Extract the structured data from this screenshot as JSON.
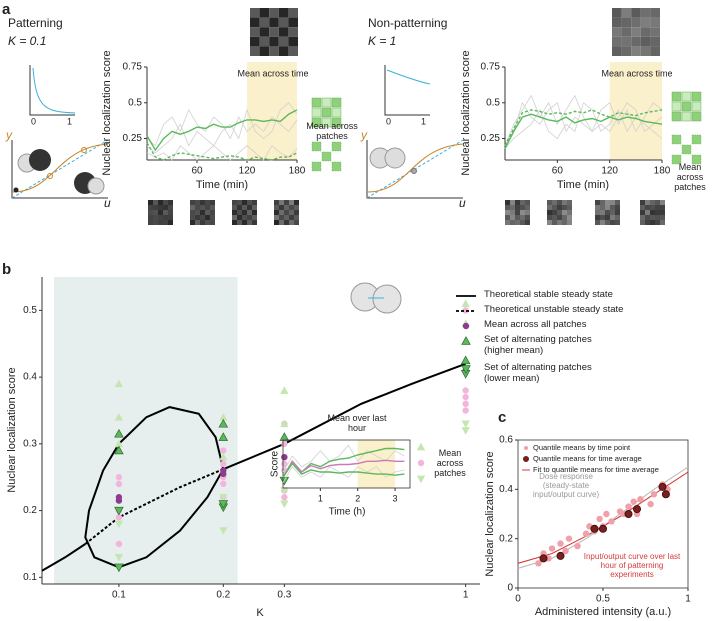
{
  "chart_data": [
    {
      "type": "line",
      "panel": "a",
      "title": "Patterning",
      "subtitle": "K = 0.1",
      "y_label": "Nuclear localization score",
      "x_label": "Time (min)",
      "xlim": [
        0,
        180
      ],
      "ylim": [
        0.1,
        0.75
      ],
      "xticks": [
        60,
        120,
        180
      ],
      "yticks": [
        0.25,
        0.5,
        0.75
      ],
      "highlight": [
        120,
        180
      ],
      "highlight_color": "#fbf0cc",
      "x": [
        0,
        10,
        20,
        30,
        40,
        50,
        60,
        70,
        80,
        90,
        100,
        110,
        120,
        130,
        140,
        150,
        160,
        170,
        180
      ],
      "series": [
        {
          "color": "#d0d0d0",
          "values": [
            0.25,
            0.2,
            0.35,
            0.4,
            0.3,
            0.45,
            0.35,
            0.3,
            0.4,
            0.35,
            0.25,
            0.4,
            0.3,
            0.35,
            0.3,
            0.4,
            0.35,
            0.3,
            0.38
          ]
        },
        {
          "color": "#d0d0d0",
          "values": [
            0.2,
            0.15,
            0.2,
            0.25,
            0.35,
            0.2,
            0.3,
            0.25,
            0.2,
            0.3,
            0.35,
            0.25,
            0.45,
            0.3,
            0.25,
            0.3,
            0.45,
            0.5,
            0.42
          ]
        },
        {
          "color": "#d0d0d0",
          "values": [
            0.15,
            0.12,
            0.15,
            0.1,
            0.2,
            0.15,
            0.1,
            0.15,
            0.2,
            0.15,
            0.1,
            0.15,
            0.2,
            0.15,
            0.1,
            0.2,
            0.15,
            0.12,
            0.18
          ]
        },
        {
          "color": "#5cb85c",
          "values": [
            0.27,
            0.17,
            0.25,
            0.3,
            0.28,
            0.3,
            0.33,
            0.32,
            0.35,
            0.33,
            0.33,
            0.36,
            0.38,
            0.38,
            0.37,
            0.38,
            0.37,
            0.42,
            0.45
          ]
        },
        {
          "color": "#5cb85c",
          "dash": true,
          "values": [
            0.22,
            0.12,
            0.1,
            0.13,
            0.15,
            0.14,
            0.13,
            0.12,
            0.11,
            0.12,
            0.13,
            0.12,
            0.1,
            0.12,
            0.11,
            0.1,
            0.12,
            0.12,
            0.15
          ]
        }
      ],
      "annotations": {
        "time_mean": "Mean across time",
        "patch_mean": "Mean across patches",
        "inset_zero": "0",
        "inset_one": "1",
        "y_axis": "y",
        "u_axis": "u"
      }
    },
    {
      "type": "line",
      "title": "Non-patterning",
      "subtitle": "K = 1",
      "y_label": "Nuclear localization score",
      "x_label": "Time (min)",
      "xlim": [
        0,
        180
      ],
      "ylim": [
        0.1,
        0.75
      ],
      "xticks": [
        60,
        120,
        180
      ],
      "yticks": [
        0.25,
        0.5,
        0.75
      ],
      "highlight": [
        120,
        180
      ],
      "highlight_color": "#fbf0cc",
      "x": [
        0,
        10,
        20,
        30,
        40,
        50,
        60,
        70,
        80,
        90,
        100,
        110,
        120,
        130,
        140,
        150,
        160,
        170,
        180
      ],
      "series": [
        {
          "color": "#d0d0d0",
          "values": [
            0.2,
            0.35,
            0.45,
            0.55,
            0.4,
            0.5,
            0.35,
            0.45,
            0.55,
            0.4,
            0.3,
            0.45,
            0.5,
            0.35,
            0.45,
            0.3,
            0.4,
            0.5,
            0.45
          ]
        },
        {
          "color": "#d0d0d0",
          "values": [
            0.18,
            0.25,
            0.3,
            0.35,
            0.45,
            0.3,
            0.25,
            0.35,
            0.3,
            0.5,
            0.45,
            0.3,
            0.35,
            0.45,
            0.3,
            0.4,
            0.35,
            0.3,
            0.25
          ]
        },
        {
          "color": "#d0d0d0",
          "values": [
            0.2,
            0.3,
            0.5,
            0.4,
            0.35,
            0.45,
            0.5,
            0.3,
            0.4,
            0.35,
            0.3,
            0.35,
            0.3,
            0.4,
            0.5,
            0.45,
            0.3,
            0.35,
            0.4
          ]
        },
        {
          "color": "#5cb85c",
          "values": [
            0.18,
            0.3,
            0.4,
            0.42,
            0.4,
            0.38,
            0.37,
            0.4,
            0.36,
            0.38,
            0.39,
            0.37,
            0.4,
            0.38,
            0.4,
            0.39,
            0.37,
            0.36,
            0.35
          ]
        },
        {
          "color": "#5cb85c",
          "dash": true,
          "values": [
            0.2,
            0.32,
            0.43,
            0.45,
            0.44,
            0.42,
            0.43,
            0.42,
            0.44,
            0.43,
            0.45,
            0.42,
            0.4,
            0.43,
            0.42,
            0.41,
            0.43,
            0.44,
            0.45
          ]
        }
      ],
      "annotations": {
        "time_mean": "Mean across time",
        "patch_mean": "Mean across patches",
        "inset_zero": "0",
        "inset_one": "1",
        "y_axis": "y",
        "u_axis": "u"
      }
    },
    {
      "type": "scatter",
      "panel": "b",
      "y_label": "Nuclear localization score",
      "x_label": "K",
      "xscale": "log",
      "xlim": [
        0.06,
        1.1
      ],
      "ylim": [
        0.09,
        0.55
      ],
      "xticks": [
        0.1,
        0.2,
        0.3,
        1
      ],
      "yticks": [
        0.1,
        0.2,
        0.3,
        0.4,
        0.5
      ],
      "highlight": [
        0.065,
        0.22
      ],
      "highlight_color": "#e6efee",
      "curves": [
        {
          "name": "Theoretical stable steady state",
          "color": "#000000",
          "x": [
            0.06,
            0.07,
            0.08,
            null,
            0.2,
            0.3,
            0.5,
            0.7,
            1,
            null,
            0.2,
            0.19,
            0.17,
            0.14,
            0.12,
            0.1,
            0.09,
            0.082,
            0.08,
            0.085,
            0.1,
            0.12,
            0.15,
            0.18,
            0.2
          ],
          "values": [
            0.11,
            0.13,
            0.15,
            null,
            0.262,
            0.3,
            0.36,
            0.39,
            0.42,
            null,
            0.262,
            0.31,
            0.345,
            0.355,
            0.34,
            0.3,
            0.26,
            0.2,
            0.16,
            0.13,
            0.115,
            0.13,
            0.17,
            0.22,
            0.262
          ]
        },
        {
          "name": "Theoretical unstable steady state",
          "color": "#000000",
          "dash": true,
          "x": [
            0.08,
            0.1,
            0.15,
            0.2
          ],
          "values": [
            0.15,
            0.19,
            0.235,
            0.262
          ]
        }
      ],
      "points": [
        {
          "color": "#f2b6dc",
          "marker": "circle",
          "x": [
            0.1,
            0.1,
            0.1,
            0.1,
            0.1,
            0.2,
            0.2,
            0.2,
            0.2,
            0.2,
            0.3,
            0.3,
            0.3,
            0.3,
            0.3,
            0.3,
            1,
            1,
            1,
            1,
            1
          ],
          "values": [
            0.15,
            0.19,
            0.24,
            0.25,
            0.2,
            0.22,
            0.24,
            0.27,
            0.29,
            0.25,
            0.22,
            0.26,
            0.3,
            0.33,
            0.27,
            0.23,
            0.37,
            0.38,
            0.35,
            0.5,
            0.36
          ]
        },
        {
          "color": "#c5e6b0",
          "marker": "up",
          "x": [
            0.1,
            0.1,
            0.1,
            0.2,
            0.2,
            0.3,
            0.3,
            1,
            1
          ],
          "values": [
            0.39,
            0.34,
            0.3,
            0.34,
            0.28,
            0.38,
            0.33,
            0.51,
            0.48
          ]
        },
        {
          "color": "#c5e6b0",
          "marker": "down",
          "x": [
            0.1,
            0.1,
            0.2,
            0.2,
            0.3,
            0.3,
            1,
            1
          ],
          "values": [
            0.13,
            0.18,
            0.17,
            0.22,
            0.21,
            0.23,
            0.32,
            0.33
          ]
        },
        {
          "name": "Mean across all patches",
          "color": "#8e3b8e",
          "marker": "circle",
          "x": [
            0.1,
            0.1,
            0.2,
            0.2,
            0.3,
            1
          ],
          "values": [
            0.215,
            0.22,
            0.255,
            0.26,
            0.28,
            0.41
          ]
        },
        {
          "name": "Set of alternating patches (higher mean)",
          "color": "#5cb85c",
          "marker": "up",
          "x": [
            0.1,
            0.1,
            0.2,
            0.2,
            0.3,
            1
          ],
          "values": [
            0.315,
            0.29,
            0.31,
            0.33,
            0.31,
            0.425
          ]
        },
        {
          "name": "Set of alternating patches (lower mean)",
          "color": "#5cb85c",
          "marker": "down",
          "x": [
            0.1,
            0.1,
            0.2,
            0.2,
            0.3,
            1
          ],
          "values": [
            0.115,
            0.2,
            0.205,
            0.21,
            0.245,
            0.405
          ]
        }
      ]
    },
    {
      "type": "line",
      "y_label": "Score",
      "x_label": "Time (h)",
      "xlim": [
        0,
        3.4
      ],
      "ylim": [
        0.05,
        0.5
      ],
      "xticks": [
        1,
        2,
        3
      ],
      "highlight": [
        2,
        3
      ],
      "highlight_color": "#fbf0cc",
      "x": [
        0,
        0.25,
        0.5,
        0.75,
        1,
        1.25,
        1.5,
        1.75,
        2,
        2.25,
        2.5,
        2.75,
        3,
        3.25
      ],
      "series": [
        {
          "color": "#d0d0d0",
          "values": [
            0.2,
            0.35,
            0.25,
            0.3,
            0.4,
            0.3,
            0.35,
            0.45,
            0.3,
            0.4,
            0.35,
            0.3,
            0.4,
            0.35
          ]
        },
        {
          "color": "#d0d0d0",
          "values": [
            0.1,
            0.25,
            0.15,
            0.2,
            0.15,
            0.25,
            0.2,
            0.15,
            0.25,
            0.2,
            0.25,
            0.15,
            0.2,
            0.22
          ]
        },
        {
          "color": "#5cb85c",
          "values": [
            0.15,
            0.3,
            0.2,
            0.28,
            0.25,
            0.3,
            0.32,
            0.33,
            0.36,
            0.38,
            0.4,
            0.42,
            0.42,
            0.41
          ]
        },
        {
          "color": "#c77bb8",
          "values": [
            0.15,
            0.3,
            0.2,
            0.26,
            0.23,
            0.26,
            0.27,
            0.27,
            0.28,
            0.3,
            0.3,
            0.31,
            0.3,
            0.3
          ]
        },
        {
          "color": "#5cb85c",
          "values": [
            0.15,
            0.28,
            0.18,
            0.22,
            0.2,
            0.2,
            0.19,
            0.2,
            0.2,
            0.19,
            0.18,
            0.18,
            0.17,
            0.18
          ]
        }
      ],
      "annotations": {
        "last_hour": "Mean over last hour",
        "patches": "Mean across patches"
      }
    },
    {
      "type": "scatter",
      "panel": "c",
      "y_label": "Nuclear localization score",
      "x_label": "Administered intensity (a.u.)",
      "xlim": [
        0,
        1
      ],
      "ylim": [
        0,
        0.6
      ],
      "xticks": [
        0,
        0.5,
        1
      ],
      "yticks": [
        0,
        0.2,
        0.4,
        0.6
      ],
      "curves": [
        {
          "color": "#bbbbbb",
          "x": [
            0,
            0.2,
            0.4,
            0.6,
            0.8,
            1
          ],
          "values": [
            0.08,
            0.12,
            0.2,
            0.3,
            0.4,
            0.49
          ]
        },
        {
          "name": "Fit to quantile means for time average",
          "color": "#d43c3c",
          "x": [
            0,
            0.2,
            0.4,
            0.6,
            0.8,
            1
          ],
          "values": [
            0.1,
            0.14,
            0.21,
            0.29,
            0.38,
            0.47
          ]
        }
      ],
      "points": [
        {
          "name": "Quantile means by time point",
          "color": "#f0a0a8",
          "marker": "circle",
          "x": [
            0.12,
            0.15,
            0.18,
            0.2,
            0.25,
            0.28,
            0.3,
            0.35,
            0.4,
            0.42,
            0.45,
            0.48,
            0.5,
            0.52,
            0.55,
            0.6,
            0.62,
            0.65,
            0.68,
            0.7,
            0.72,
            0.78,
            0.8,
            0.85,
            0.88
          ],
          "values": [
            0.1,
            0.14,
            0.12,
            0.16,
            0.18,
            0.15,
            0.2,
            0.17,
            0.22,
            0.25,
            0.23,
            0.28,
            0.25,
            0.3,
            0.27,
            0.31,
            0.3,
            0.33,
            0.35,
            0.3,
            0.36,
            0.34,
            0.38,
            0.42,
            0.4
          ]
        },
        {
          "name": "Quantile means for time average",
          "color": "#7a1e1e",
          "marker": "big",
          "x": [
            0.15,
            0.25,
            0.45,
            0.5,
            0.65,
            0.7,
            0.85,
            0.87
          ],
          "values": [
            0.12,
            0.13,
            0.24,
            0.24,
            0.3,
            0.32,
            0.41,
            0.38
          ]
        }
      ],
      "annotations": {
        "dose": "Dose response (steady-state input/output curve)",
        "io": "Input/output curve over last hour of patterning experiments"
      }
    }
  ]
}
